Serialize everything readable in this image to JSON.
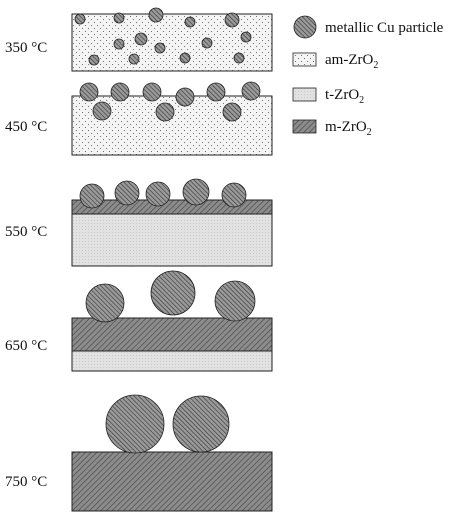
{
  "legend": {
    "particle": "metallic Cu particle",
    "am": "am-ZrO",
    "t": "t-ZrO",
    "m": "m-ZrO",
    "subscript": "2"
  },
  "stages": [
    {
      "temp": "350",
      "unit": "°C"
    },
    {
      "temp": "450",
      "unit": "°C"
    },
    {
      "temp": "550",
      "unit": "°C"
    },
    {
      "temp": "650",
      "unit": "°C"
    },
    {
      "temp": "750",
      "unit": "°C"
    }
  ],
  "colors": {
    "amorphous_fill": "#f4f4f4",
    "tetragonal_fill": "#e3e3e3",
    "monoclinic_fill": "#888888",
    "particle_fill": "#8a8a8a",
    "stroke": "#222222"
  }
}
